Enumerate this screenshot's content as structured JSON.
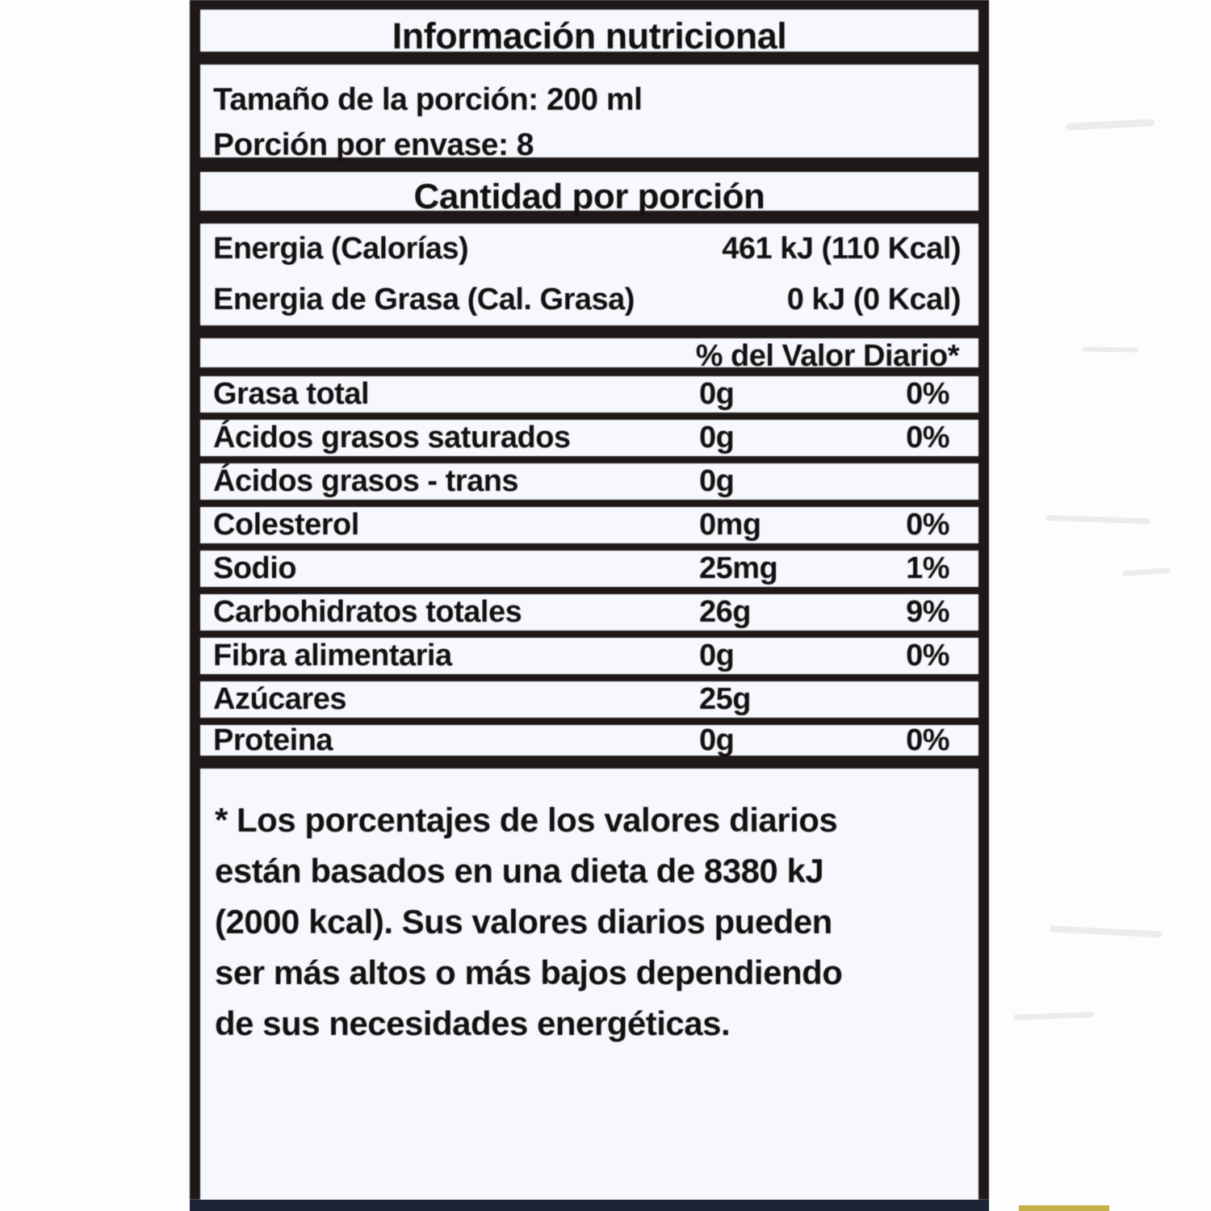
{
  "colors": {
    "label_background": "#edeff4",
    "ink": "#1d1818",
    "page_background": "#fdfdfd",
    "bottom_bar": "#1e2438",
    "accent_strip": "#c6b04a"
  },
  "label": {
    "title": "Información nutricional",
    "serving_lines": [
      "Tamaño de la porción: 200 ml",
      "Porción por envase: 8"
    ],
    "amount_per_serving_header": "Cantidad por porción",
    "energy_rows": [
      {
        "name": "Energia (Calorías)",
        "value": "461 kJ (110 Kcal)"
      },
      {
        "name": "Energia de Grasa (Cal. Grasa)",
        "value": "0 kJ (0 Kcal)"
      }
    ],
    "daily_value_header": "% del Valor Diario*",
    "nutrients": [
      {
        "name": "Grasa total",
        "amount": "0g",
        "dv": "0%"
      },
      {
        "name": "Ácidos grasos saturados",
        "amount": "0g",
        "dv": "0%"
      },
      {
        "name": "Ácidos grasos - trans",
        "amount": "0g",
        "dv": ""
      },
      {
        "name": "Colesterol",
        "amount": "0mg",
        "dv": "0%"
      },
      {
        "name": "Sodio",
        "amount": "25mg",
        "dv": "1%"
      },
      {
        "name": "Carbohidratos totales",
        "amount": "26g",
        "dv": "9%"
      },
      {
        "name": "Fibra alimentaria",
        "amount": "0g",
        "dv": "0%"
      },
      {
        "name": "Azúcares",
        "amount": "25g",
        "dv": ""
      },
      {
        "name": "Proteina",
        "amount": "0g",
        "dv": "0%"
      }
    ],
    "footnote_lines": [
      "* Los porcentajes de los valores diarios",
      "están basados en una dieta de 8380 kJ",
      "(2000 kcal). Sus valores diarios pueden",
      "ser más altos o más bajos dependiendo",
      "de sus necesidades energéticas."
    ]
  }
}
